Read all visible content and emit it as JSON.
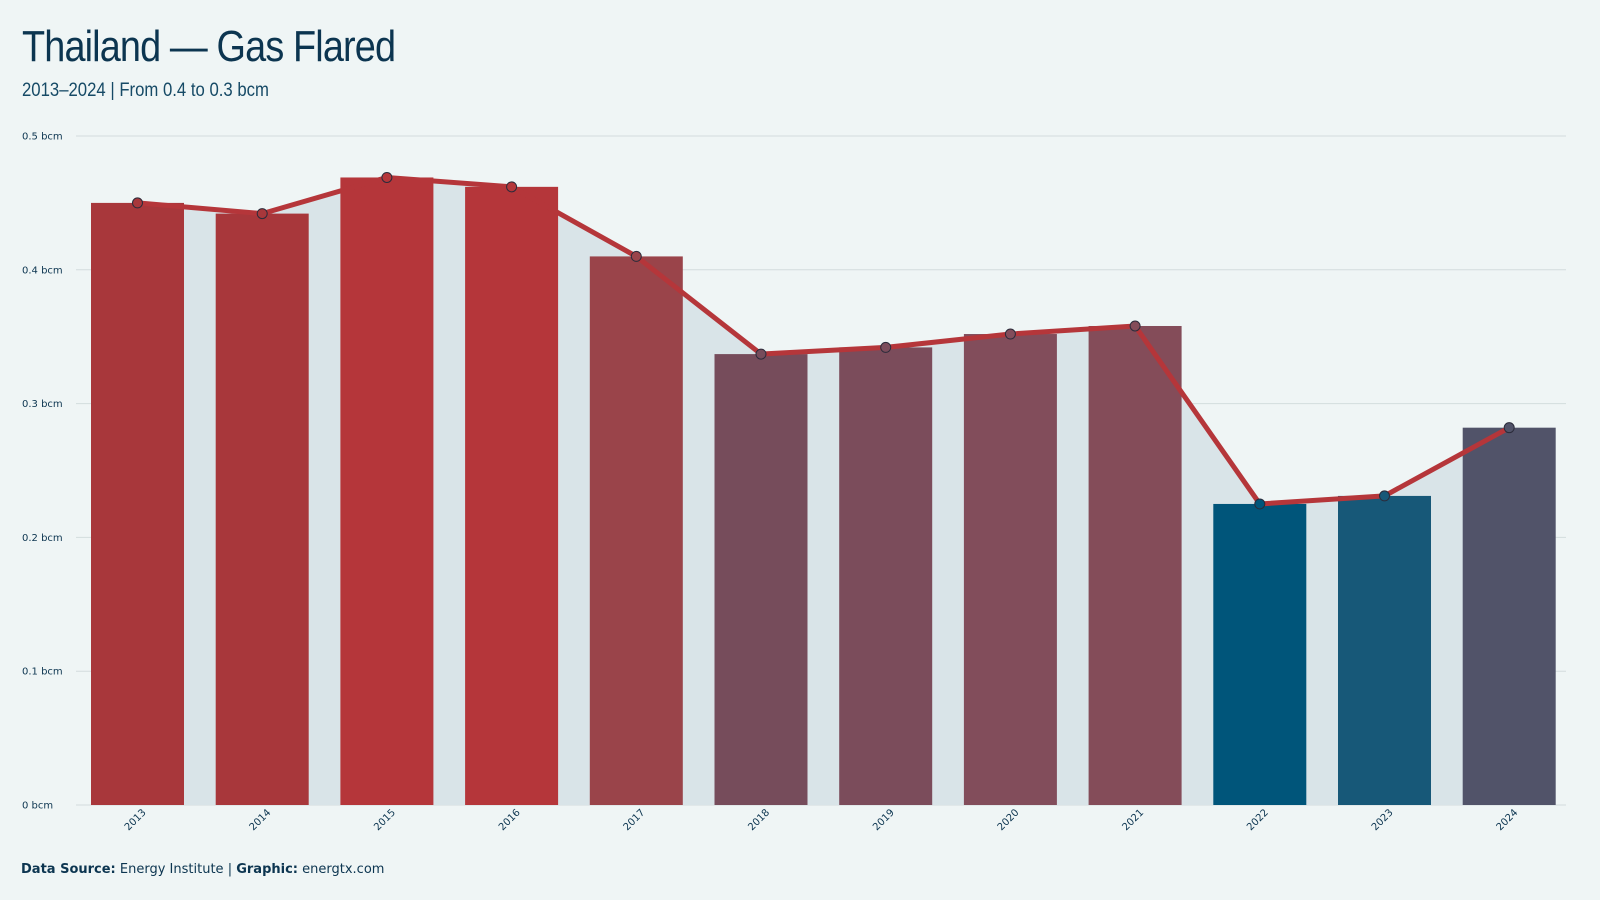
{
  "header": {
    "title": "Thailand — Gas Flared",
    "subtitle": "2013–2024 | From 0.4 to 0.3 bcm"
  },
  "footer": {
    "source_label": "Data Source:",
    "source_value": "Energy Institute",
    "separator": "|",
    "graphic_label": "Graphic:",
    "graphic_value": "energtx.com"
  },
  "colors": {
    "background": "#eff5f5",
    "line": "#b5363a",
    "area": "#d9e4e8",
    "grid": "#d3dcdd"
  },
  "chart_data": {
    "type": "bar",
    "categories": [
      "2013",
      "2014",
      "2015",
      "2016",
      "2017",
      "2018",
      "2019",
      "2020",
      "2021",
      "2022",
      "2023",
      "2024"
    ],
    "values": [
      0.45,
      0.442,
      0.469,
      0.462,
      0.41,
      0.337,
      0.342,
      0.352,
      0.358,
      0.225,
      0.231,
      0.282
    ],
    "bar_colors": [
      "#a8373b",
      "#a8373b",
      "#b5363a",
      "#b5363a",
      "#9a444a",
      "#764c5b",
      "#7b4c5b",
      "#824d5b",
      "#844c59",
      "#00557a",
      "#175878",
      "#515369"
    ],
    "overlay": "line with area fill through the same values",
    "ylim": [
      0,
      0.5
    ],
    "yticks": [
      0,
      0.1,
      0.2,
      0.3,
      0.4,
      0.5
    ],
    "ytick_labels": [
      "0 bcm",
      "0.1 bcm",
      "0.2 bcm",
      "0.3 bcm",
      "0.4 bcm",
      "0.5 bcm"
    ],
    "grid": true,
    "legend": "none"
  }
}
